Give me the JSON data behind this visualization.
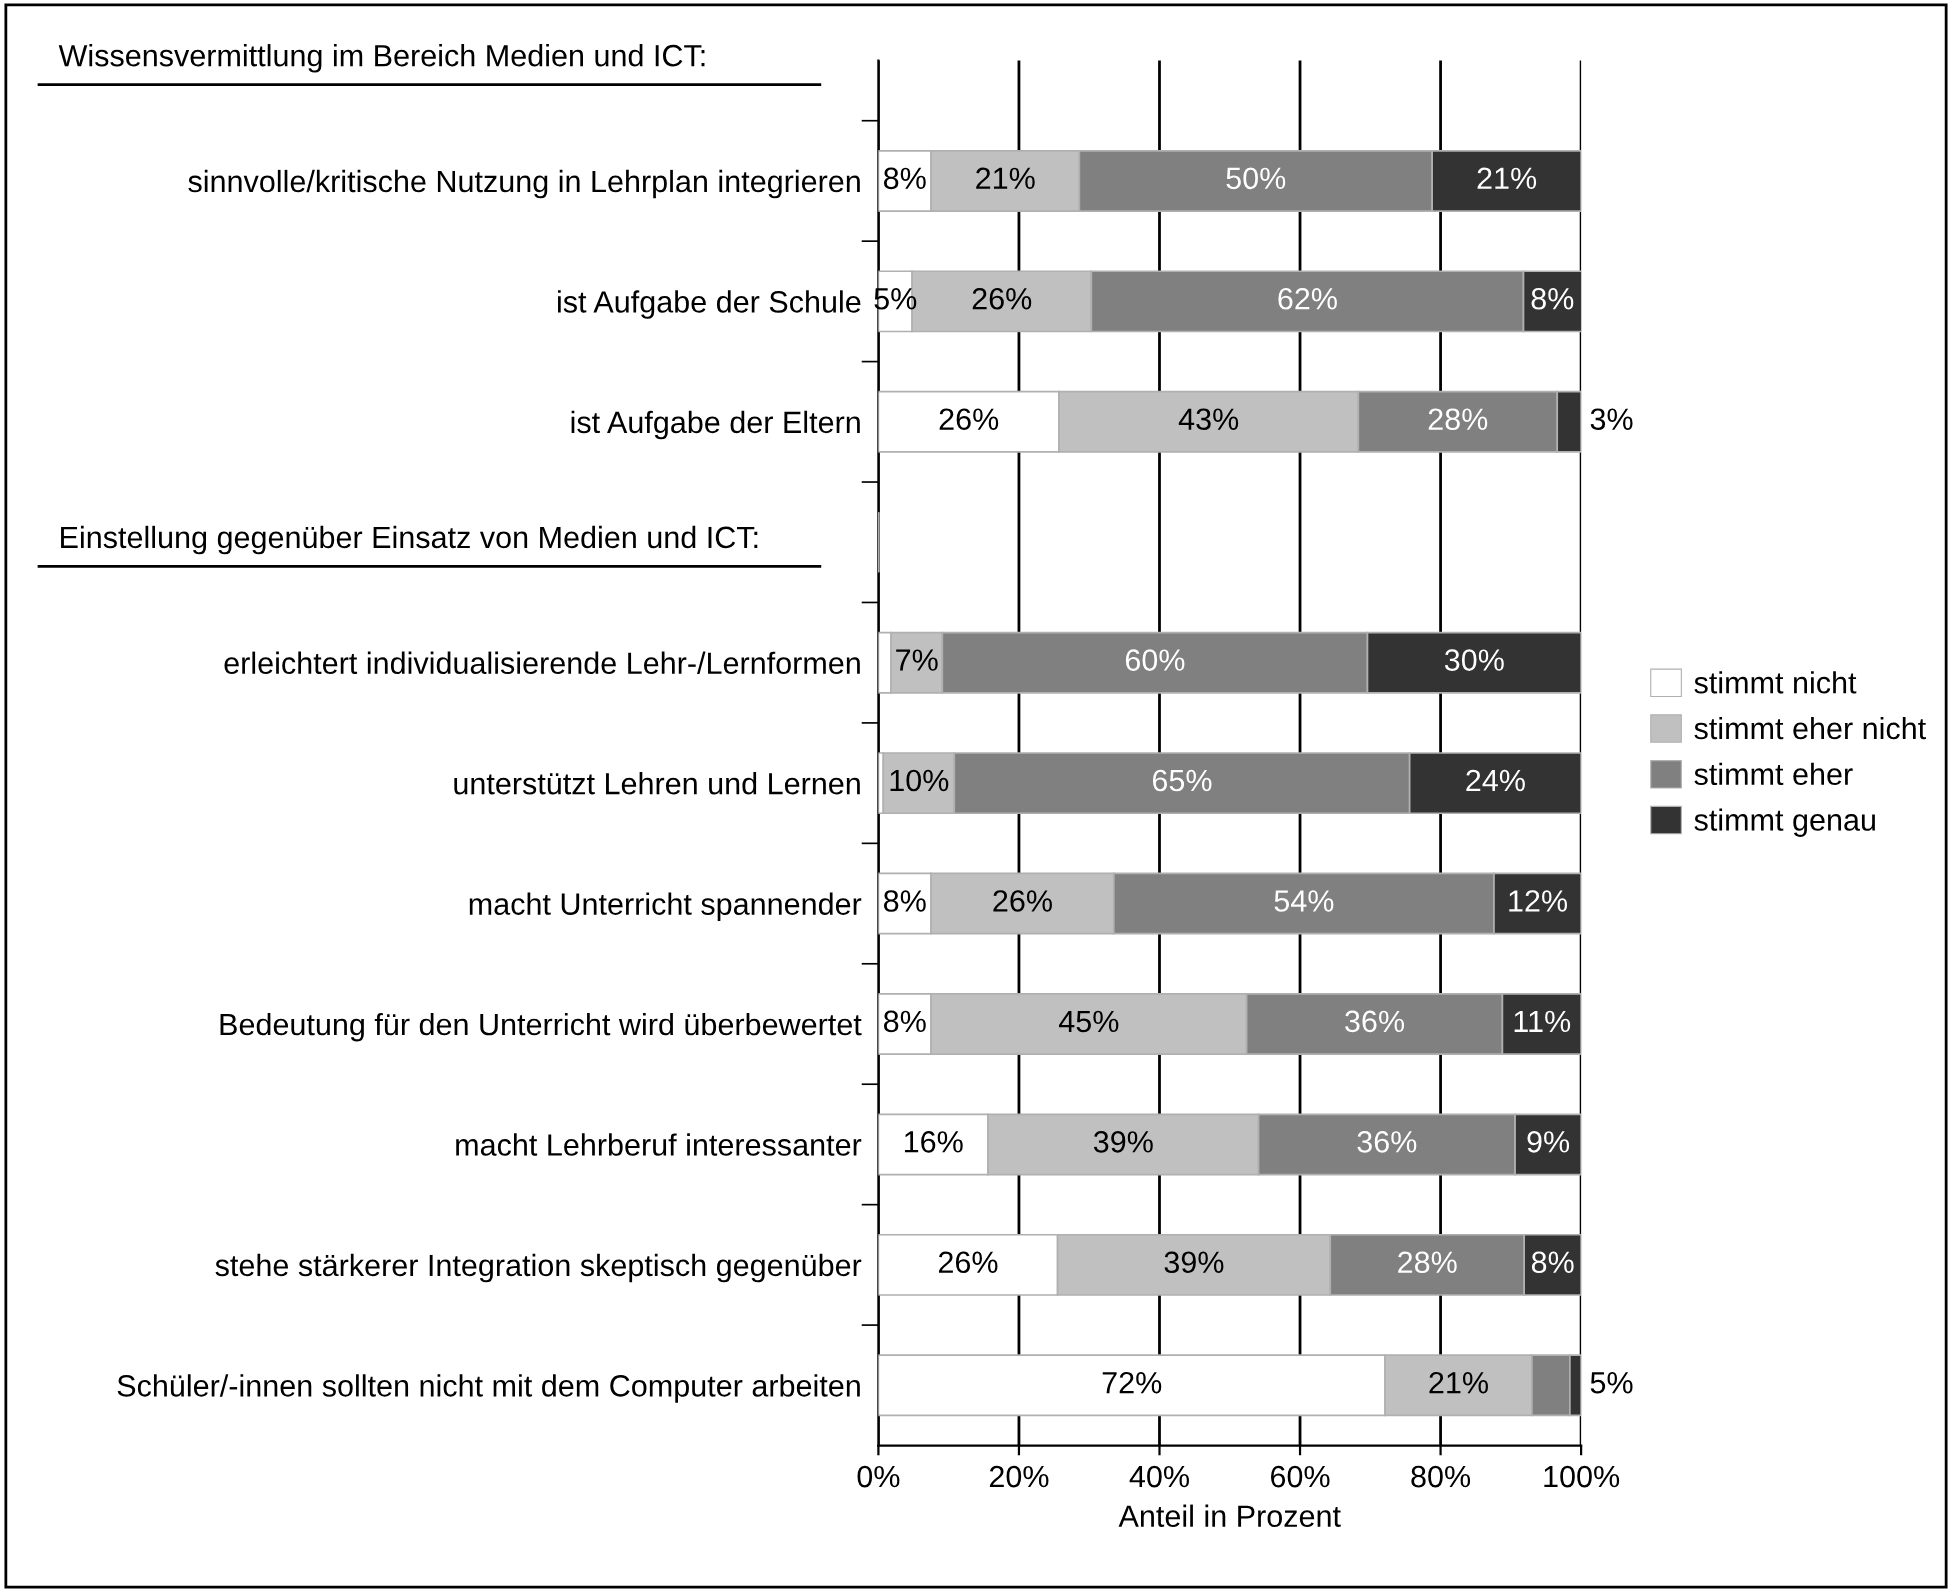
{
  "chart_data": {
    "type": "bar",
    "orientation": "horizontal",
    "stacked": true,
    "categories": [
      "sinnvolle/kritische Nutzung in Lehrplan integrieren",
      "ist Aufgabe der Schule",
      "ist Aufgabe der Eltern",
      null,
      "erleichtert individualisierende Lehr-/Lernformen",
      "unterstützt Lehren und Lernen",
      "macht Unterricht spannender",
      "Bedeutung für den Unterricht wird überbewertet",
      "macht Lehrberuf interessanter",
      "stehe stärkerer Integration skeptisch gegenüber",
      "Schüler/-innen sollten nicht mit dem Computer arbeiten"
    ],
    "series": [
      {
        "name": "stimmt nicht",
        "color": "#ffffff",
        "values": [
          7.5,
          4.8,
          25.7,
          null,
          1.8,
          0.7,
          7.5,
          7.5,
          15.6,
          25.5,
          72.1
        ],
        "value_labels": [
          "8%",
          "5%",
          "26%",
          null,
          null,
          null,
          "8%",
          "8%",
          "16%",
          "26%",
          "72%"
        ]
      },
      {
        "name": "stimmt eher nicht",
        "color": "#c0c0c0",
        "values": [
          21.1,
          25.5,
          42.6,
          null,
          7.3,
          10.1,
          26.0,
          44.9,
          38.5,
          38.8,
          20.9
        ],
        "value_labels": [
          "21%",
          "26%",
          "43%",
          null,
          "7%",
          "10%",
          "26%",
          "45%",
          "39%",
          "39%",
          "21%"
        ]
      },
      {
        "name": "stimmt eher",
        "color": "#808080",
        "values": [
          50.2,
          61.5,
          28.3,
          null,
          60.5,
          64.8,
          54.1,
          36.4,
          36.5,
          27.6,
          5.4
        ],
        "value_labels": [
          "50%",
          "62%",
          "28%",
          null,
          "60%",
          "65%",
          "54%",
          "36%",
          "36%",
          "28%",
          "5%"
        ]
      },
      {
        "name": "stimmt genau",
        "color": "#333333",
        "values": [
          21.2,
          8.3,
          3.4,
          null,
          30.4,
          24.4,
          12.4,
          11.2,
          9.4,
          8.1,
          1.6
        ],
        "value_labels": [
          "21%",
          "8%",
          "3%",
          null,
          "30%",
          "24%",
          "12%",
          "11%",
          "9%",
          "8%",
          null
        ]
      }
    ],
    "xlim": [
      0,
      100
    ],
    "xticks": [
      {
        "value": 0,
        "label": "0%"
      },
      {
        "value": 20,
        "label": "20%"
      },
      {
        "value": 40,
        "label": "40%"
      },
      {
        "value": 60,
        "label": "60%"
      },
      {
        "value": 80,
        "label": "80%"
      },
      {
        "value": 100,
        "label": "100%"
      }
    ],
    "xlabel": "Anteil in Prozent",
    "annotations": [
      "Wissensvermittlung im Bereich Medien und ICT:",
      "Einstellung gegenüber Einsatz von Medien und ICT:"
    ],
    "grid": "x",
    "legend": "right"
  }
}
